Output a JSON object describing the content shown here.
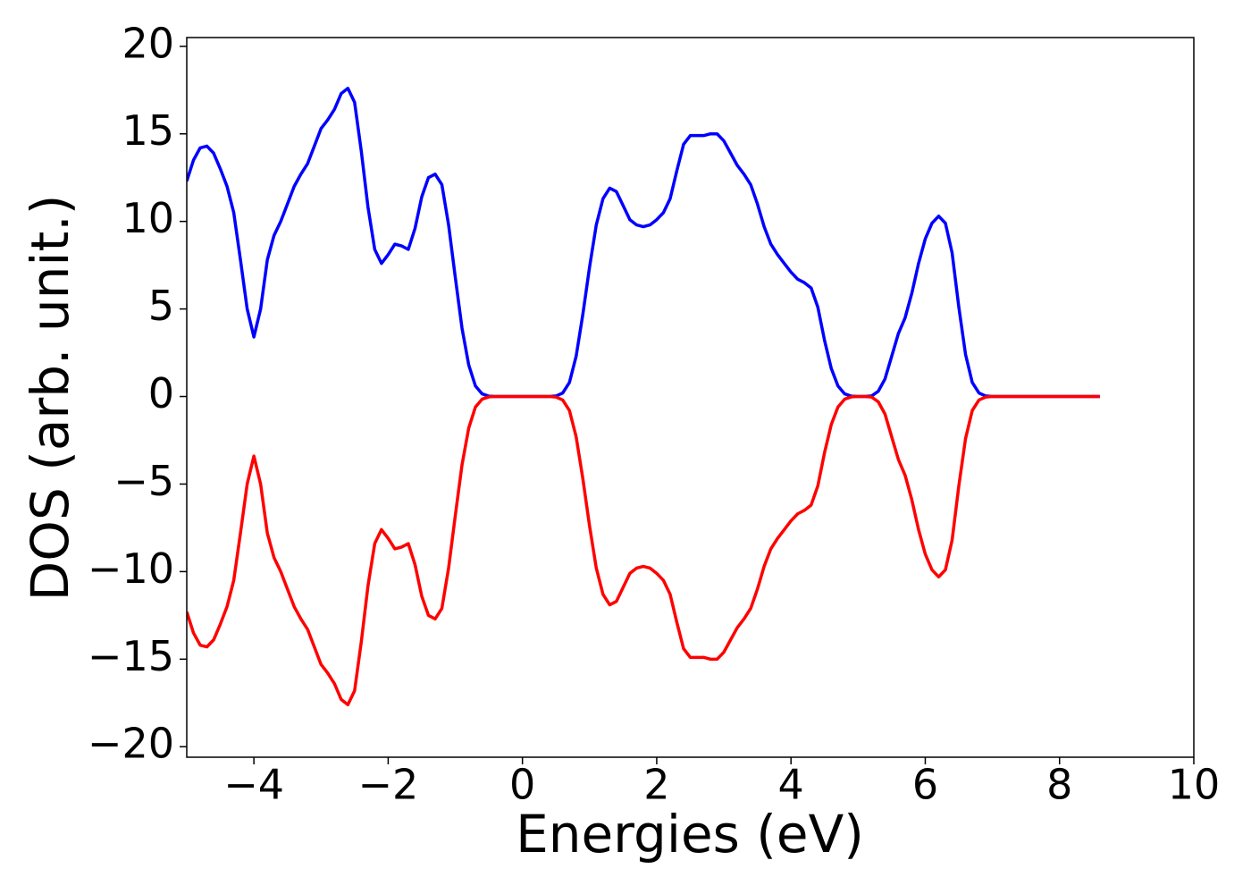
{
  "chart_data": {
    "type": "line",
    "x_label": "Energies (eV)",
    "y_label": "DOS (arb. unit.)",
    "x": [
      -5.0,
      -4.9,
      -4.8,
      -4.7,
      -4.6,
      -4.5,
      -4.4,
      -4.3,
      -4.2,
      -4.1,
      -4.0,
      -3.9,
      -3.8,
      -3.7,
      -3.6,
      -3.5,
      -3.4,
      -3.3,
      -3.2,
      -3.1,
      -3.0,
      -2.9,
      -2.8,
      -2.7,
      -2.6,
      -2.5,
      -2.4,
      -2.3,
      -2.2,
      -2.1,
      -2.0,
      -1.9,
      -1.8,
      -1.7,
      -1.6,
      -1.5,
      -1.4,
      -1.3,
      -1.2,
      -1.1,
      -1.0,
      -0.9,
      -0.8,
      -0.7,
      -0.6,
      -0.5,
      -0.4,
      -0.3,
      -0.2,
      -0.1,
      0.0,
      0.1,
      0.2,
      0.3,
      0.4,
      0.5,
      0.6,
      0.7,
      0.8,
      0.9,
      1.0,
      1.1,
      1.2,
      1.3,
      1.4,
      1.5,
      1.6,
      1.7,
      1.8,
      1.9,
      2.0,
      2.1,
      2.2,
      2.3,
      2.4,
      2.5,
      2.6,
      2.7,
      2.8,
      2.9,
      3.0,
      3.1,
      3.2,
      3.3,
      3.4,
      3.5,
      3.6,
      3.7,
      3.8,
      3.9,
      4.0,
      4.1,
      4.2,
      4.3,
      4.4,
      4.5,
      4.6,
      4.7,
      4.8,
      4.9,
      5.0,
      5.1,
      5.2,
      5.3,
      5.4,
      5.5,
      5.6,
      5.7,
      5.8,
      5.9,
      6.0,
      6.1,
      6.2,
      6.3,
      6.4,
      6.5,
      6.6,
      6.7,
      6.8,
      6.9,
      7.0,
      7.5,
      8.0,
      8.6
    ],
    "series": [
      {
        "color": "#0000ff",
        "values": [
          12.3,
          13.5,
          14.2,
          14.3,
          13.9,
          13.0,
          12.0,
          10.5,
          7.8,
          5.0,
          3.4,
          5.0,
          7.8,
          9.2,
          10.0,
          11.0,
          12.0,
          12.7,
          13.3,
          14.3,
          15.3,
          15.8,
          16.4,
          17.3,
          17.6,
          16.8,
          14.0,
          10.8,
          8.4,
          7.6,
          8.1,
          8.7,
          8.6,
          8.4,
          9.6,
          11.4,
          12.5,
          12.7,
          12.1,
          9.8,
          6.8,
          3.9,
          1.8,
          0.6,
          0.15,
          0.02,
          0,
          0,
          0,
          0,
          0,
          0,
          0,
          0,
          0,
          0.03,
          0.2,
          0.8,
          2.3,
          4.7,
          7.4,
          9.8,
          11.3,
          11.9,
          11.7,
          10.9,
          10.1,
          9.8,
          9.7,
          9.8,
          10.1,
          10.5,
          11.3,
          12.9,
          14.4,
          14.9,
          14.9,
          14.9,
          15.0,
          15.0,
          14.6,
          13.9,
          13.2,
          12.7,
          12.1,
          11.0,
          9.7,
          8.7,
          8.1,
          7.6,
          7.1,
          6.7,
          6.5,
          6.2,
          5.1,
          3.2,
          1.6,
          0.6,
          0.15,
          0.02,
          0,
          0,
          0.03,
          0.3,
          1.0,
          2.3,
          3.6,
          4.5,
          5.9,
          7.6,
          9.0,
          9.9,
          10.3,
          9.9,
          8.2,
          5.1,
          2.4,
          0.8,
          0.2,
          0.03,
          0,
          0,
          0,
          0
        ]
      },
      {
        "color": "#ff0000",
        "values": [
          -12.3,
          -13.5,
          -14.2,
          -14.3,
          -13.9,
          -13.0,
          -12.0,
          -10.5,
          -7.8,
          -5.0,
          -3.4,
          -5.0,
          -7.8,
          -9.2,
          -10.0,
          -11.0,
          -12.0,
          -12.7,
          -13.3,
          -14.3,
          -15.3,
          -15.8,
          -16.4,
          -17.3,
          -17.6,
          -16.8,
          -14.0,
          -10.8,
          -8.4,
          -7.6,
          -8.1,
          -8.7,
          -8.6,
          -8.4,
          -9.6,
          -11.4,
          -12.5,
          -12.7,
          -12.1,
          -9.8,
          -6.8,
          -3.9,
          -1.8,
          -0.6,
          -0.15,
          -0.02,
          0,
          0,
          0,
          0,
          0,
          0,
          0,
          0,
          0,
          -0.03,
          -0.2,
          -0.8,
          -2.3,
          -4.7,
          -7.4,
          -9.8,
          -11.3,
          -11.9,
          -11.7,
          -10.9,
          -10.1,
          -9.8,
          -9.7,
          -9.8,
          -10.1,
          -10.5,
          -11.3,
          -12.9,
          -14.4,
          -14.9,
          -14.9,
          -14.9,
          -15.0,
          -15.0,
          -14.6,
          -13.9,
          -13.2,
          -12.7,
          -12.1,
          -11.0,
          -9.7,
          -8.7,
          -8.1,
          -7.6,
          -7.1,
          -6.7,
          -6.5,
          -6.2,
          -5.1,
          -3.2,
          -1.6,
          -0.6,
          -0.15,
          -0.02,
          0,
          0,
          -0.03,
          -0.3,
          -1.0,
          -2.3,
          -3.6,
          -4.5,
          -5.9,
          -7.6,
          -9.0,
          -9.9,
          -10.3,
          -9.9,
          -8.2,
          -5.1,
          -2.4,
          -0.8,
          -0.2,
          -0.03,
          0,
          0,
          0,
          0
        ]
      }
    ],
    "xlim": [
      -5,
      10
    ],
    "xticks": [
      {
        "value": -4,
        "label": "−4"
      },
      {
        "value": -2,
        "label": "−2"
      },
      0,
      2,
      4,
      6,
      8,
      10
    ],
    "ylim": [
      -20.6,
      20.5
    ],
    "yticks": [
      {
        "value": -20,
        "label": "−20"
      },
      {
        "value": -15,
        "label": "−15"
      },
      {
        "value": -10,
        "label": "−10"
      },
      {
        "value": -5,
        "label": "−5"
      },
      0,
      5,
      10,
      15,
      20
    ],
    "grid": false
  }
}
